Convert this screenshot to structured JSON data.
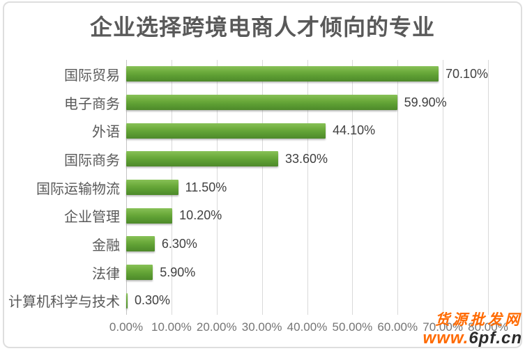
{
  "chart_data": {
    "type": "bar",
    "orientation": "horizontal",
    "title": "企业选择跨境电商人才倾向的专业",
    "categories": [
      "国际贸易",
      "电子商务",
      "外语",
      "国际商务",
      "国际运输物流",
      "企业管理",
      "金融",
      "法律",
      "计算机科学与技术"
    ],
    "values": [
      70.1,
      59.9,
      44.1,
      33.6,
      11.5,
      10.2,
      6.3,
      5.9,
      0.3
    ],
    "value_labels": [
      "70.10%",
      "59.90%",
      "44.10%",
      "33.60%",
      "11.50%",
      "10.20%",
      "6.30%",
      "5.90%",
      "0.30%"
    ],
    "x_ticks": [
      "0.00%",
      "10.00%",
      "20.00%",
      "30.00%",
      "40.00%",
      "50.00%",
      "60.00%",
      "70.00%",
      "80.00%"
    ],
    "xlim": [
      0,
      80
    ],
    "xlabel": "",
    "ylabel": "",
    "grid": "vertical",
    "legend": "none",
    "bar_color": "#5d9e33",
    "gridline_color": "#d9d9d9",
    "title_color": "#595959",
    "category_label_color": "#595959",
    "value_label_color": "#404040",
    "tick_label_color": "#757575"
  },
  "watermark": {
    "site_name": "货源批发网",
    "url_prefix": "www.",
    "url_suffix": "6pf.cn",
    "accent_color": "#ff6a00"
  }
}
